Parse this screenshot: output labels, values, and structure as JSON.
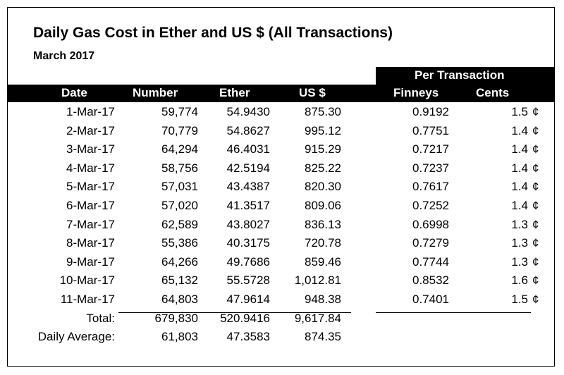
{
  "title": "Daily Gas Cost in Ether and US $ (All Transactions)",
  "subtitle": "March 2017",
  "group_header": "Per Transaction",
  "columns": {
    "date": "Date",
    "number": "Number",
    "ether": "Ether",
    "usd": "US $",
    "finneys": "Finneys",
    "cents": "Cents"
  },
  "cent_symbol": "¢",
  "rows": [
    {
      "date": "1-Mar-17",
      "number": "59,774",
      "ether": "54.9430",
      "usd": "875.30",
      "finneys": "0.9192",
      "cents": "1.5"
    },
    {
      "date": "2-Mar-17",
      "number": "70,779",
      "ether": "54.8627",
      "usd": "995.12",
      "finneys": "0.7751",
      "cents": "1.4"
    },
    {
      "date": "3-Mar-17",
      "number": "64,294",
      "ether": "46.4031",
      "usd": "915.29",
      "finneys": "0.7217",
      "cents": "1.4"
    },
    {
      "date": "4-Mar-17",
      "number": "58,756",
      "ether": "42.5194",
      "usd": "825.22",
      "finneys": "0.7237",
      "cents": "1.4"
    },
    {
      "date": "5-Mar-17",
      "number": "57,031",
      "ether": "43.4387",
      "usd": "820.30",
      "finneys": "0.7617",
      "cents": "1.4"
    },
    {
      "date": "6-Mar-17",
      "number": "57,020",
      "ether": "41.3517",
      "usd": "809.06",
      "finneys": "0.7252",
      "cents": "1.4"
    },
    {
      "date": "7-Mar-17",
      "number": "62,589",
      "ether": "43.8027",
      "usd": "836.13",
      "finneys": "0.6998",
      "cents": "1.3"
    },
    {
      "date": "8-Mar-17",
      "number": "55,386",
      "ether": "40.3175",
      "usd": "720.78",
      "finneys": "0.7279",
      "cents": "1.3"
    },
    {
      "date": "9-Mar-17",
      "number": "64,266",
      "ether": "49.7686",
      "usd": "859.46",
      "finneys": "0.7744",
      "cents": "1.3"
    },
    {
      "date": "10-Mar-17",
      "number": "65,132",
      "ether": "55.5728",
      "usd": "1,012.81",
      "finneys": "0.8532",
      "cents": "1.6"
    },
    {
      "date": "11-Mar-17",
      "number": "64,803",
      "ether": "47.9614",
      "usd": "948.38",
      "finneys": "0.7401",
      "cents": "1.5"
    }
  ],
  "totals": [
    {
      "label": "Total:",
      "number": "679,830",
      "ether": "520.9416",
      "usd": "9,617.84"
    },
    {
      "label": "Daily Average:",
      "number": "61,803",
      "ether": "47.3583",
      "usd": "874.35"
    }
  ]
}
